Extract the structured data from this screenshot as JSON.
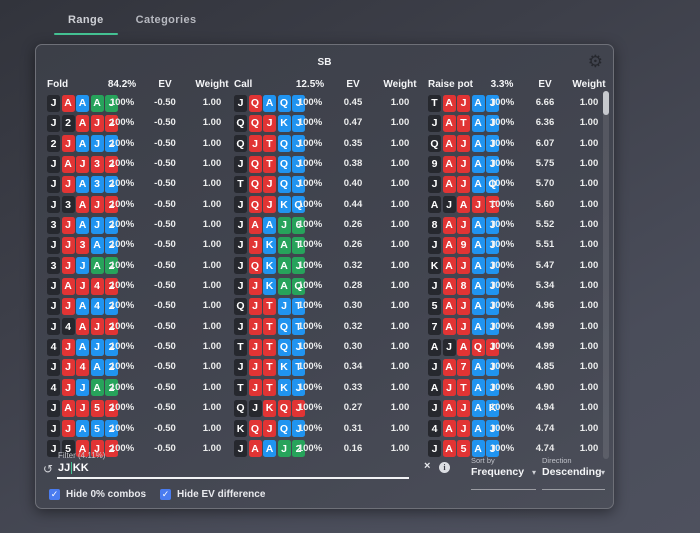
{
  "tabs": [
    {
      "label": "Range",
      "active": true
    },
    {
      "label": "Categories",
      "active": false
    }
  ],
  "panel": {
    "position_label": "SB",
    "header": {
      "fold": {
        "label": "Fold",
        "pct": "84.2%",
        "ev": "EV",
        "weight": "Weight"
      },
      "call": {
        "label": "Call",
        "pct": "12.5%",
        "ev": "EV",
        "weight": "Weight"
      },
      "raise": {
        "label": "Raise pot",
        "pct": "3.3%",
        "ev": "EV",
        "weight": "Weight"
      }
    },
    "rows": [
      {
        "fold": {
          "cards": [
            "Js",
            "Ah",
            "Ad",
            "Ac",
            "Jc"
          ],
          "freq": "100%",
          "ev": "-0.50",
          "weight": "1.00"
        },
        "call": {
          "cards": [
            "Js",
            "Qh",
            "Ad",
            "Qd",
            "Jd"
          ],
          "freq": "100%",
          "ev": "0.45",
          "weight": "1.00"
        },
        "raise": {
          "cards": [
            "Ts",
            "Ah",
            "Jh",
            "Ad",
            "Jd"
          ],
          "freq": "100%",
          "ev": "6.66",
          "weight": "1.00"
        }
      },
      {
        "fold": {
          "cards": [
            "Js",
            "2s",
            "Ah",
            "Jh",
            "2h"
          ],
          "freq": "100%",
          "ev": "-0.50",
          "weight": "1.00"
        },
        "call": {
          "cards": [
            "Qs",
            "Qh",
            "Jh",
            "Kd",
            "Jd"
          ],
          "freq": "100%",
          "ev": "0.47",
          "weight": "1.00"
        },
        "raise": {
          "cards": [
            "Js",
            "Ah",
            "Th",
            "Ad",
            "Jd"
          ],
          "freq": "100%",
          "ev": "6.36",
          "weight": "1.00"
        }
      },
      {
        "fold": {
          "cards": [
            "2s",
            "Jh",
            "Ad",
            "Jd",
            "2d"
          ],
          "freq": "100%",
          "ev": "-0.50",
          "weight": "1.00"
        },
        "call": {
          "cards": [
            "Qs",
            "Jh",
            "Th",
            "Qd",
            "Jd"
          ],
          "freq": "100%",
          "ev": "0.35",
          "weight": "1.00"
        },
        "raise": {
          "cards": [
            "Qs",
            "Ah",
            "Jh",
            "Ad",
            "Jd"
          ],
          "freq": "100%",
          "ev": "6.07",
          "weight": "1.00"
        }
      },
      {
        "fold": {
          "cards": [
            "Js",
            "Ah",
            "Jh",
            "3h",
            "2h"
          ],
          "freq": "100%",
          "ev": "-0.50",
          "weight": "1.00"
        },
        "call": {
          "cards": [
            "Js",
            "Qh",
            "Th",
            "Qd",
            "Jd"
          ],
          "freq": "100%",
          "ev": "0.38",
          "weight": "1.00"
        },
        "raise": {
          "cards": [
            "9s",
            "Ah",
            "Jh",
            "Ad",
            "Jd"
          ],
          "freq": "100%",
          "ev": "5.75",
          "weight": "1.00"
        }
      },
      {
        "fold": {
          "cards": [
            "Js",
            "Jh",
            "Ad",
            "3d",
            "2d"
          ],
          "freq": "100%",
          "ev": "-0.50",
          "weight": "1.00"
        },
        "call": {
          "cards": [
            "Ts",
            "Qh",
            "Jh",
            "Qd",
            "Jd"
          ],
          "freq": "100%",
          "ev": "0.40",
          "weight": "1.00"
        },
        "raise": {
          "cards": [
            "Js",
            "Ah",
            "Jh",
            "Ad",
            "Qd"
          ],
          "freq": "100%",
          "ev": "5.70",
          "weight": "1.00"
        }
      },
      {
        "fold": {
          "cards": [
            "Js",
            "3s",
            "Ah",
            "Jh",
            "2h"
          ],
          "freq": "100%",
          "ev": "-0.50",
          "weight": "1.00"
        },
        "call": {
          "cards": [
            "Js",
            "Qh",
            "Jh",
            "Kd",
            "Qd"
          ],
          "freq": "100%",
          "ev": "0.44",
          "weight": "1.00"
        },
        "raise": {
          "cards": [
            "As",
            "Js",
            "Ah",
            "Jh",
            "Th"
          ],
          "freq": "100%",
          "ev": "5.60",
          "weight": "1.00"
        }
      },
      {
        "fold": {
          "cards": [
            "3s",
            "Jh",
            "Ad",
            "Jd",
            "2d"
          ],
          "freq": "100%",
          "ev": "-0.50",
          "weight": "1.00"
        },
        "call": {
          "cards": [
            "Js",
            "Ah",
            "Ad",
            "Jc",
            "6c"
          ],
          "freq": "100%",
          "ev": "0.26",
          "weight": "1.00"
        },
        "raise": {
          "cards": [
            "8s",
            "Ah",
            "Jh",
            "Ad",
            "Jd"
          ],
          "freq": "100%",
          "ev": "5.52",
          "weight": "1.00"
        }
      },
      {
        "fold": {
          "cards": [
            "Js",
            "Jh",
            "3h",
            "Ad",
            "2d"
          ],
          "freq": "100%",
          "ev": "-0.50",
          "weight": "1.00"
        },
        "call": {
          "cards": [
            "Js",
            "Jh",
            "Kd",
            "Ac",
            "Tc"
          ],
          "freq": "100%",
          "ev": "0.26",
          "weight": "1.00"
        },
        "raise": {
          "cards": [
            "Js",
            "Ah",
            "9h",
            "Ad",
            "Jd"
          ],
          "freq": "100%",
          "ev": "5.51",
          "weight": "1.00"
        }
      },
      {
        "fold": {
          "cards": [
            "3s",
            "Jh",
            "Jd",
            "Ac",
            "2c"
          ],
          "freq": "100%",
          "ev": "-0.50",
          "weight": "1.00"
        },
        "call": {
          "cards": [
            "Js",
            "Qh",
            "Kd",
            "Ac",
            "Jc"
          ],
          "freq": "100%",
          "ev": "0.32",
          "weight": "1.00"
        },
        "raise": {
          "cards": [
            "Ks",
            "Ah",
            "Jh",
            "Ad",
            "Jd"
          ],
          "freq": "100%",
          "ev": "5.47",
          "weight": "1.00"
        }
      },
      {
        "fold": {
          "cards": [
            "Js",
            "Ah",
            "Jh",
            "4h",
            "2h"
          ],
          "freq": "100%",
          "ev": "-0.50",
          "weight": "1.00"
        },
        "call": {
          "cards": [
            "Js",
            "Jh",
            "Kd",
            "Ac",
            "Qc"
          ],
          "freq": "100%",
          "ev": "0.28",
          "weight": "1.00"
        },
        "raise": {
          "cards": [
            "Js",
            "Ah",
            "8h",
            "Ad",
            "Jd"
          ],
          "freq": "100%",
          "ev": "5.34",
          "weight": "1.00"
        }
      },
      {
        "fold": {
          "cards": [
            "Js",
            "Jh",
            "Ad",
            "4d",
            "2d"
          ],
          "freq": "100%",
          "ev": "-0.50",
          "weight": "1.00"
        },
        "call": {
          "cards": [
            "Qs",
            "Jh",
            "Th",
            "Jd",
            "Td"
          ],
          "freq": "100%",
          "ev": "0.30",
          "weight": "1.00"
        },
        "raise": {
          "cards": [
            "5s",
            "Ah",
            "Jh",
            "Ad",
            "Jd"
          ],
          "freq": "100%",
          "ev": "4.96",
          "weight": "1.00"
        }
      },
      {
        "fold": {
          "cards": [
            "Js",
            "4s",
            "Ah",
            "Jh",
            "2h"
          ],
          "freq": "100%",
          "ev": "-0.50",
          "weight": "1.00"
        },
        "call": {
          "cards": [
            "Js",
            "Jh",
            "Th",
            "Qd",
            "Td"
          ],
          "freq": "100%",
          "ev": "0.32",
          "weight": "1.00"
        },
        "raise": {
          "cards": [
            "7s",
            "Ah",
            "Jh",
            "Ad",
            "Jd"
          ],
          "freq": "100%",
          "ev": "4.99",
          "weight": "1.00"
        }
      },
      {
        "fold": {
          "cards": [
            "4s",
            "Jh",
            "Ad",
            "Jd",
            "2d"
          ],
          "freq": "100%",
          "ev": "-0.50",
          "weight": "1.00"
        },
        "call": {
          "cards": [
            "Ts",
            "Jh",
            "Th",
            "Qd",
            "Jd"
          ],
          "freq": "100%",
          "ev": "0.30",
          "weight": "1.00"
        },
        "raise": {
          "cards": [
            "As",
            "Js",
            "Ah",
            "Qh",
            "Jh"
          ],
          "freq": "100%",
          "ev": "4.99",
          "weight": "1.00"
        }
      },
      {
        "fold": {
          "cards": [
            "Js",
            "Jh",
            "4h",
            "Ad",
            "2d"
          ],
          "freq": "100%",
          "ev": "-0.50",
          "weight": "1.00"
        },
        "call": {
          "cards": [
            "Js",
            "Jh",
            "Th",
            "Kd",
            "Td"
          ],
          "freq": "100%",
          "ev": "0.34",
          "weight": "1.00"
        },
        "raise": {
          "cards": [
            "Js",
            "Ah",
            "7h",
            "Ad",
            "Jd"
          ],
          "freq": "100%",
          "ev": "4.85",
          "weight": "1.00"
        }
      },
      {
        "fold": {
          "cards": [
            "4s",
            "Jh",
            "Jd",
            "Ac",
            "2c"
          ],
          "freq": "100%",
          "ev": "-0.50",
          "weight": "1.00"
        },
        "call": {
          "cards": [
            "Ts",
            "Jh",
            "Th",
            "Kd",
            "Jd"
          ],
          "freq": "100%",
          "ev": "0.33",
          "weight": "1.00"
        },
        "raise": {
          "cards": [
            "As",
            "Jh",
            "Th",
            "Ad",
            "Jd"
          ],
          "freq": "100%",
          "ev": "4.90",
          "weight": "1.00"
        }
      },
      {
        "fold": {
          "cards": [
            "Js",
            "Ah",
            "Jh",
            "5h",
            "2h"
          ],
          "freq": "100%",
          "ev": "-0.50",
          "weight": "1.00"
        },
        "call": {
          "cards": [
            "Qs",
            "Js",
            "Kh",
            "Qh",
            "Jh"
          ],
          "freq": "100%",
          "ev": "0.27",
          "weight": "1.00"
        },
        "raise": {
          "cards": [
            "Js",
            "Ah",
            "Jh",
            "Ad",
            "Kd"
          ],
          "freq": "100%",
          "ev": "4.94",
          "weight": "1.00"
        }
      },
      {
        "fold": {
          "cards": [
            "Js",
            "Jh",
            "Ad",
            "5d",
            "2d"
          ],
          "freq": "100%",
          "ev": "-0.50",
          "weight": "1.00"
        },
        "call": {
          "cards": [
            "Ks",
            "Qh",
            "Jh",
            "Qd",
            "Jd"
          ],
          "freq": "100%",
          "ev": "0.31",
          "weight": "1.00"
        },
        "raise": {
          "cards": [
            "4s",
            "Ah",
            "Jh",
            "Ad",
            "Jd"
          ],
          "freq": "100%",
          "ev": "4.74",
          "weight": "1.00"
        }
      },
      {
        "fold": {
          "cards": [
            "Js",
            "5s",
            "Ah",
            "Jh",
            "2h"
          ],
          "freq": "100%",
          "ev": "-0.50",
          "weight": "1.00"
        },
        "call": {
          "cards": [
            "Js",
            "Ah",
            "Ad",
            "Jc",
            "2c"
          ],
          "freq": "100%",
          "ev": "0.16",
          "weight": "1.00"
        },
        "raise": {
          "cards": [
            "Js",
            "Ah",
            "5h",
            "Ad",
            "Jd"
          ],
          "freq": "100%",
          "ev": "4.74",
          "weight": "1.00"
        }
      }
    ],
    "filter": {
      "label": "Filter (4.11%)",
      "value_before_caret": "JJ",
      "value_after_caret": "KK",
      "clear_icon": "×",
      "info_icon": "i"
    },
    "sort_by": {
      "label": "Sort by",
      "value": "Frequency"
    },
    "direction": {
      "label": "Direction",
      "value": "Descending"
    },
    "checkboxes": [
      {
        "label": "Hide 0% combos",
        "checked": true
      },
      {
        "label": "Hide EV difference",
        "checked": true
      }
    ]
  },
  "colors": {
    "spade": "#26282e",
    "heart": "#e13434",
    "diamond": "#2094f0",
    "club": "#27a35b",
    "accent_green": "#45c495",
    "checkbox_blue": "#4a7cf0"
  }
}
